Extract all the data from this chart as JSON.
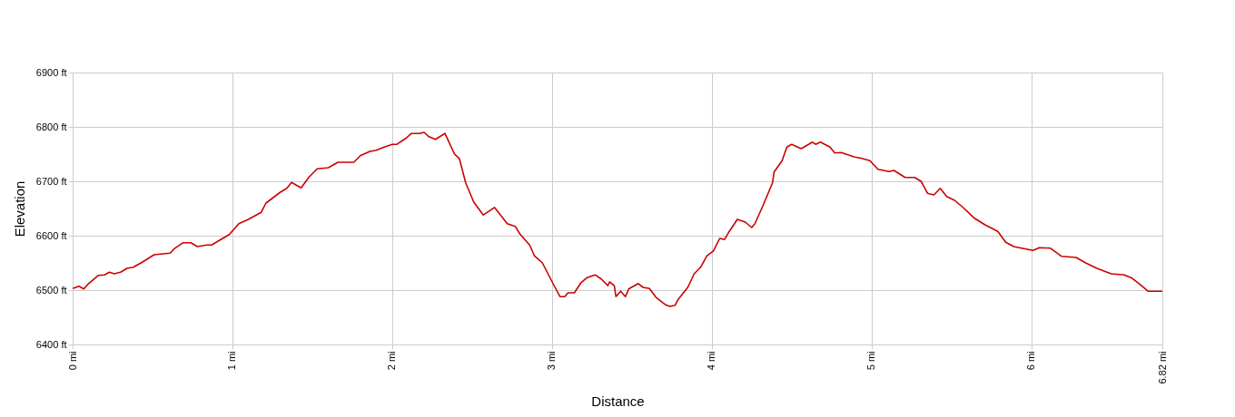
{
  "chart_data": {
    "type": "line",
    "xlabel": "Distance",
    "ylabel": "Elevation",
    "x": [
      0.0,
      0.04,
      0.07,
      0.1,
      0.16,
      0.2,
      0.23,
      0.26,
      0.3,
      0.34,
      0.38,
      0.44,
      0.51,
      0.61,
      0.64,
      0.69,
      0.74,
      0.78,
      0.84,
      0.87,
      0.91,
      0.98,
      1.01,
      1.04,
      1.1,
      1.18,
      1.21,
      1.3,
      1.34,
      1.37,
      1.43,
      1.48,
      1.53,
      1.6,
      1.66,
      1.76,
      1.8,
      1.86,
      1.9,
      1.95,
      2.0,
      2.03,
      2.09,
      2.12,
      2.17,
      2.2,
      2.23,
      2.27,
      2.33,
      2.39,
      2.42,
      2.46,
      2.51,
      2.57,
      2.64,
      2.72,
      2.77,
      2.8,
      2.86,
      2.89,
      2.94,
      3.01,
      3.05,
      3.08,
      3.1,
      3.14,
      3.18,
      3.22,
      3.27,
      3.31,
      3.35,
      3.36,
      3.39,
      3.4,
      3.43,
      3.46,
      3.48,
      3.54,
      3.57,
      3.61,
      3.65,
      3.71,
      3.74,
      3.77,
      3.79,
      3.85,
      3.89,
      3.93,
      3.97,
      4.01,
      4.05,
      4.08,
      4.11,
      4.16,
      4.21,
      4.25,
      4.27,
      4.32,
      4.38,
      4.39,
      4.44,
      4.47,
      4.5,
      4.56,
      4.63,
      4.65,
      4.68,
      4.74,
      4.77,
      4.81,
      4.89,
      4.94,
      4.99,
      5.04,
      5.11,
      5.14,
      5.21,
      5.27,
      5.31,
      5.35,
      5.39,
      5.43,
      5.47,
      5.52,
      5.58,
      5.64,
      5.71,
      5.79,
      5.84,
      5.89,
      6.01,
      6.05,
      6.12,
      6.19,
      6.28,
      6.34,
      6.41,
      6.5,
      6.58,
      6.63,
      6.69,
      6.73,
      6.82
    ],
    "series": [
      {
        "color": "#cc0000",
        "values": [
          6503,
          6507,
          6502,
          6512,
          6527,
          6528,
          6533,
          6530,
          6533,
          6540,
          6542,
          6552,
          6565,
          6568,
          6577,
          6587,
          6587,
          6580,
          6583,
          6583,
          6590,
          6602,
          6612,
          6622,
          6630,
          6643,
          6660,
          6680,
          6687,
          6698,
          6688,
          6708,
          6723,
          6725,
          6735,
          6735,
          6747,
          6755,
          6757,
          6763,
          6768,
          6768,
          6780,
          6788,
          6788,
          6790,
          6782,
          6777,
          6788,
          6750,
          6742,
          6697,
          6662,
          6638,
          6652,
          6622,
          6617,
          6603,
          6583,
          6563,
          6550,
          6510,
          6488,
          6488,
          6495,
          6495,
          6513,
          6523,
          6528,
          6520,
          6508,
          6515,
          6508,
          6488,
          6498,
          6488,
          6502,
          6512,
          6505,
          6503,
          6487,
          6473,
          6470,
          6472,
          6483,
          6505,
          6530,
          6542,
          6563,
          6572,
          6595,
          6593,
          6608,
          6630,
          6625,
          6615,
          6622,
          6655,
          6697,
          6717,
          6738,
          6763,
          6768,
          6760,
          6772,
          6768,
          6772,
          6763,
          6752,
          6753,
          6745,
          6742,
          6738,
          6722,
          6718,
          6720,
          6707,
          6707,
          6700,
          6678,
          6675,
          6687,
          6672,
          6665,
          6650,
          6633,
          6620,
          6608,
          6588,
          6580,
          6573,
          6578,
          6577,
          6562,
          6560,
          6550,
          6540,
          6530,
          6528,
          6522,
          6508,
          6498,
          6498
        ]
      }
    ],
    "xlim": [
      0,
      6.82
    ],
    "xticks": [
      {
        "value": 0,
        "label": "0 mi"
      },
      {
        "value": 1,
        "label": "1 mi"
      },
      {
        "value": 2,
        "label": "2 mi"
      },
      {
        "value": 3,
        "label": "3 mi"
      },
      {
        "value": 4,
        "label": "4 mi"
      },
      {
        "value": 5,
        "label": "5 mi"
      },
      {
        "value": 6,
        "label": "6 mi"
      },
      {
        "value": 6.82,
        "label": "6.82 mi"
      }
    ],
    "ylim": [
      6400,
      6900
    ],
    "yticks": [
      {
        "value": 6400,
        "label": "6400 ft"
      },
      {
        "value": 6500,
        "label": "6500 ft"
      },
      {
        "value": 6600,
        "label": "6600 ft"
      },
      {
        "value": 6700,
        "label": "6700 ft"
      },
      {
        "value": 6800,
        "label": "6800 ft"
      },
      {
        "value": 6900,
        "label": "6900 ft"
      }
    ],
    "grid": true,
    "marker": "none",
    "line_style": "solid",
    "legend": false
  }
}
